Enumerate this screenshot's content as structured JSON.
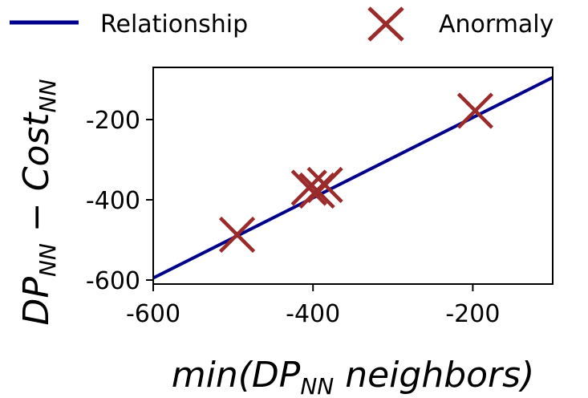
{
  "chart_data": {
    "type": "scatter",
    "title": "",
    "xlabel": {
      "prefix": "min(",
      "main": "DP",
      "sub": "NN",
      "suffix": " neighbors)"
    },
    "ylabel": {
      "a": "DP",
      "a_sub": "NN",
      "minus": " − ",
      "b": "Cost",
      "b_sub": "NN"
    },
    "xlim": [
      -600,
      -100
    ],
    "ylim": [
      -610,
      -70
    ],
    "x_ticks": [
      -600,
      -400,
      -200
    ],
    "y_ticks": [
      -600,
      -400,
      -200
    ],
    "legend_placement": "top",
    "series": [
      {
        "name": "Relationship",
        "kind": "line",
        "color": "#00008b",
        "x": [
          -600,
          -100
        ],
        "y": [
          -595,
          -95
        ]
      },
      {
        "name": "Anormaly",
        "kind": "scatter",
        "marker": "x",
        "color": "#9b2a2a",
        "x": [
          -495,
          -405,
          -395,
          -385,
          -197
        ],
        "y": [
          -487,
          -370,
          -377,
          -363,
          -178
        ]
      }
    ]
  }
}
